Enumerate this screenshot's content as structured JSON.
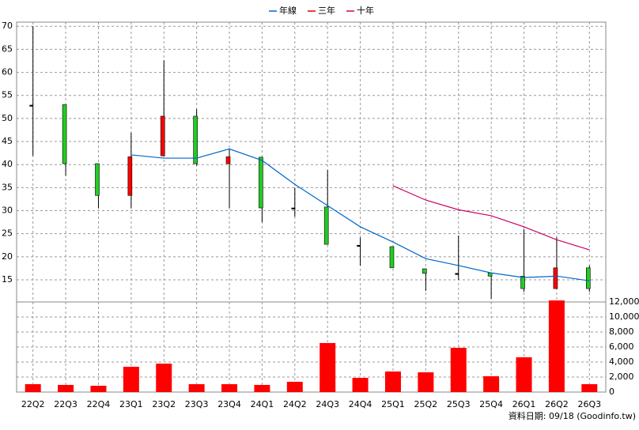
{
  "chart_data": {
    "type": "candlestick",
    "categories": [
      "22Q2",
      "22Q3",
      "22Q4",
      "23Q1",
      "23Q2",
      "23Q3",
      "23Q4",
      "24Q1",
      "24Q2",
      "24Q3",
      "24Q4",
      "25Q1",
      "25Q2",
      "25Q3",
      "25Q4",
      "26Q1",
      "26Q2",
      "26Q3"
    ],
    "open": [
      52.9,
      53,
      40.2,
      33.3,
      41.9,
      50.5,
      40.2,
      41.6,
      30.6,
      30.8,
      22.5,
      22.2,
      17.4,
      16.4,
      16.5,
      15.8,
      13.1,
      17.6
    ],
    "high": [
      70,
      53,
      40.2,
      46.9,
      62.6,
      52,
      43.5,
      41.6,
      35,
      38.8,
      24.2,
      22.2,
      17.4,
      24.6,
      16.5,
      26,
      24.2,
      18.1
    ],
    "low": [
      41.9,
      37.6,
      30.6,
      30.6,
      41.9,
      39.8,
      30.6,
      27.5,
      28.7,
      22.7,
      18.1,
      17.6,
      12.6,
      15,
      10.9,
      12.4,
      13.1,
      12.4
    ],
    "close": [
      52.9,
      40.2,
      33.3,
      41.7,
      50.5,
      40.2,
      41.7,
      30.6,
      30.6,
      22.7,
      22.5,
      17.6,
      16.4,
      16.4,
      15.8,
      13.1,
      17.6,
      13.1
    ],
    "up_color": "#ff0000",
    "down_color": "#22cc22",
    "series": [
      {
        "name": "年線",
        "color": "#0066cc",
        "values": [
          null,
          null,
          null,
          42.1,
          41.4,
          41.4,
          43.4,
          40.9,
          35.7,
          31.1,
          26.5,
          23.2,
          19.6,
          18.1,
          16.5,
          15.5,
          15.8,
          14.8
        ]
      },
      {
        "name": "三年",
        "color": "#dd0000",
        "values": [
          null,
          null,
          null,
          null,
          null,
          null,
          null,
          null,
          null,
          null,
          null,
          null,
          null,
          null,
          null,
          null,
          null,
          null
        ]
      },
      {
        "name": "十年",
        "color": "#cc0066",
        "values": [
          null,
          null,
          null,
          null,
          null,
          null,
          null,
          null,
          null,
          null,
          null,
          35.4,
          32.3,
          30.2,
          28.9,
          26.5,
          23.7,
          21.5
        ]
      }
    ],
    "volume": {
      "color": "#ff0000",
      "values": [
        1050,
        950,
        840,
        3370,
        3790,
        1050,
        1050,
        950,
        1370,
        6530,
        1890,
        2740,
        2630,
        5890,
        2110,
        4630,
        12200,
        1050
      ]
    },
    "ylim": [
      10.2,
      70.9
    ],
    "yticks": [
      15,
      20,
      25,
      30,
      35,
      40,
      45,
      50,
      55,
      60,
      65,
      70
    ],
    "y2lim": [
      0,
      12000
    ],
    "y2ticks": [
      0,
      {
        "value": 2000,
        "label": "2,000"
      },
      {
        "value": 4000,
        "label": "4,000"
      },
      {
        "value": 6000,
        "label": "6,000"
      },
      {
        "value": 8000,
        "label": "8,000"
      },
      {
        "value": 10000,
        "label": "10,000"
      },
      {
        "value": 12000,
        "label": "12,000"
      }
    ],
    "grid": true,
    "source": "資料日期: 09/18 (Goodinfo.tw)"
  }
}
